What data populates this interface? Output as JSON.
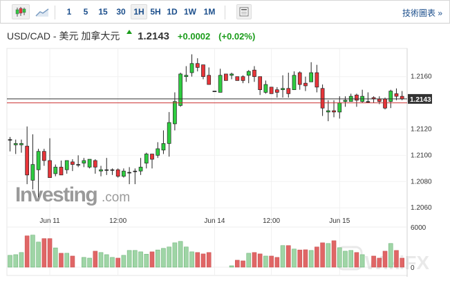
{
  "toolbar": {
    "intervals": [
      "1",
      "5",
      "15",
      "30",
      "1H",
      "5H",
      "1D",
      "1W",
      "1M"
    ],
    "active_interval": "1H",
    "tech_chart_link": "技術圖表 »"
  },
  "header": {
    "symbol_title": "USD/CAD - 美元 加拿大元",
    "price": "1.2143",
    "change": "+0.0002",
    "change_pct": "(+0.02%)"
  },
  "watermarks": {
    "investing": "Investing.com",
    "wikifx": "WikiFX"
  },
  "colors": {
    "up": "#2ecc40",
    "down": "#e8353a",
    "vol_up": "#9fd5a6",
    "vol_down": "#e06666",
    "price_line": "#333333",
    "prev_line": "#cc3333",
    "tag_bg": "#333333"
  },
  "chart_data": {
    "type": "candlestick",
    "title": "USD/CAD - 美元 加拿大元",
    "interval": "1H",
    "ylim": [
      1.2055,
      1.218
    ],
    "y_ticks": [
      "1.2160",
      "1.2120",
      "1.2100",
      "1.2080",
      "1.2060"
    ],
    "current_price_label": "1.2143",
    "current_price": 1.2143,
    "prev_close": 1.214,
    "x_ticks": [
      {
        "label": "Jun 11",
        "index": 7
      },
      {
        "label": "12:00",
        "index": 19
      },
      {
        "label": "Jun 14",
        "index": 36
      },
      {
        "label": "12:00",
        "index": 46
      },
      {
        "label": "Jun 15",
        "index": 58
      }
    ],
    "ohlc": [
      [
        1.2112,
        1.2114,
        1.2103,
        1.2112
      ],
      [
        1.2108,
        1.2112,
        1.2101,
        1.2109
      ],
      [
        1.2108,
        1.2112,
        1.2102,
        1.2109
      ],
      [
        1.2107,
        1.2122,
        1.2078,
        1.2085
      ],
      [
        1.2081,
        1.2116,
        1.2074,
        1.2093
      ],
      [
        1.2089,
        1.2105,
        1.2068,
        1.2103
      ],
      [
        1.2103,
        1.2105,
        1.2092,
        1.2096
      ],
      [
        1.2096,
        1.2113,
        1.2083,
        1.2083
      ],
      [
        1.2086,
        1.2093,
        1.2084,
        1.2091
      ],
      [
        1.2091,
        1.2096,
        1.2085,
        1.2085
      ],
      [
        1.2089,
        1.2096,
        1.2086,
        1.2096
      ],
      [
        1.2095,
        1.2097,
        1.2088,
        1.2093
      ],
      [
        1.2093,
        1.21,
        1.2091,
        1.2093
      ],
      [
        1.2094,
        1.2098,
        1.2091,
        1.2096
      ],
      [
        1.2091,
        1.2097,
        1.209,
        1.2097
      ],
      [
        1.2096,
        1.2097,
        1.2086,
        1.2091
      ],
      [
        1.2088,
        1.2092,
        1.2084,
        1.2089
      ],
      [
        1.2089,
        1.2098,
        1.2085,
        1.2089
      ],
      [
        1.2089,
        1.209,
        1.2085,
        1.2089
      ],
      [
        1.2089,
        1.209,
        1.2083,
        1.2084
      ],
      [
        1.2084,
        1.209,
        1.2083,
        1.2088
      ],
      [
        1.2087,
        1.2091,
        1.2078,
        1.2087
      ],
      [
        1.2088,
        1.209,
        1.2078,
        1.2088
      ],
      [
        1.2088,
        1.2098,
        1.2085,
        1.2091
      ],
      [
        1.2094,
        1.2102,
        1.209,
        1.2101
      ],
      [
        1.2101,
        1.2101,
        1.209,
        1.2097
      ],
      [
        1.21,
        1.211,
        1.2098,
        1.2105
      ],
      [
        1.2104,
        1.2119,
        1.2101,
        1.2109
      ],
      [
        1.2109,
        1.2133,
        1.2099,
        1.2125
      ],
      [
        1.2124,
        1.2148,
        1.2119,
        1.2141
      ],
      [
        1.2138,
        1.2163,
        1.2137,
        1.2162
      ],
      [
        1.216,
        1.2168,
        1.2156,
        1.2161
      ],
      [
        1.2163,
        1.2177,
        1.216,
        1.217
      ],
      [
        1.217,
        1.2174,
        1.2164,
        1.2167
      ],
      [
        1.2169,
        1.2169,
        1.2158,
        1.216
      ],
      [
        1.2161,
        1.2167,
        1.2154,
        1.2154
      ],
      [
        1.2149,
        1.2149,
        1.2149,
        1.2149
      ],
      [
        1.2148,
        1.2166,
        1.2148,
        1.2161
      ],
      [
        1.2162,
        1.2162,
        1.2157,
        1.2157
      ],
      [
        1.2161,
        1.2163,
        1.2158,
        1.2162
      ],
      [
        1.216,
        1.216,
        1.2157,
        1.2157
      ],
      [
        1.216,
        1.2161,
        1.2155,
        1.2157
      ],
      [
        1.2161,
        1.2165,
        1.2155,
        1.2164
      ],
      [
        1.2165,
        1.2168,
        1.2156,
        1.216
      ],
      [
        1.216,
        1.216,
        1.2146,
        1.215
      ],
      [
        1.2148,
        1.2157,
        1.2147,
        1.2154
      ],
      [
        1.2152,
        1.2152,
        1.2147,
        1.2147
      ],
      [
        1.215,
        1.2152,
        1.2144,
        1.2148
      ],
      [
        1.215,
        1.2161,
        1.2144,
        1.2151
      ],
      [
        1.2151,
        1.2163,
        1.2144,
        1.2147
      ],
      [
        1.215,
        1.2164,
        1.215,
        1.2161
      ],
      [
        1.2163,
        1.2164,
        1.215,
        1.2154
      ],
      [
        1.2155,
        1.216,
        1.2149,
        1.2153
      ],
      [
        1.2156,
        1.2171,
        1.2156,
        1.2163
      ],
      [
        1.2163,
        1.2169,
        1.2148,
        1.2152
      ],
      [
        1.2151,
        1.2154,
        1.213,
        1.2136
      ],
      [
        1.2133,
        1.2142,
        1.2126,
        1.2134
      ],
      [
        1.2134,
        1.2142,
        1.2129,
        1.2133
      ],
      [
        1.2133,
        1.2145,
        1.2128,
        1.214
      ],
      [
        1.2141,
        1.2145,
        1.2137,
        1.2142
      ],
      [
        1.2141,
        1.2147,
        1.2141,
        1.2145
      ],
      [
        1.2146,
        1.2147,
        1.2137,
        1.2142
      ],
      [
        1.2141,
        1.215,
        1.214,
        1.2145
      ],
      [
        1.2141,
        1.2148,
        1.214,
        1.2141
      ],
      [
        1.2144,
        1.2145,
        1.214,
        1.2143
      ],
      [
        1.2143,
        1.2145,
        1.2139,
        1.2141
      ],
      [
        1.2143,
        1.2144,
        1.2135,
        1.2136
      ],
      [
        1.2141,
        1.215,
        1.2136,
        1.2149
      ],
      [
        1.2147,
        1.2151,
        1.2142,
        1.2145
      ],
      [
        1.2145,
        1.2149,
        1.2142,
        1.2143
      ]
    ],
    "volume_ticks": [
      "6000",
      "0"
    ],
    "volume_max": 6000,
    "volume": [
      1770,
      1870,
      2190,
      4680,
      4790,
      3750,
      4270,
      4270,
      2880,
      2080,
      2080,
      1660,
      0,
      1460,
      1350,
      2390,
      2190,
      1870,
      1460,
      1350,
      1770,
      2500,
      2500,
      2290,
      1940,
      2290,
      2570,
      2810,
      3020,
      3640,
      3850,
      3020,
      2290,
      2190,
      1980,
      2190,
      0,
      0,
      0,
      210,
      1040,
      940,
      2080,
      2190,
      1980,
      1660,
      1660,
      1460,
      3230,
      3230,
      2710,
      2570,
      2600,
      2500,
      3020,
      3640,
      3540,
      3950,
      2910,
      2390,
      2500,
      2190,
      1870,
      0,
      1660,
      1350,
      2390,
      3540,
      2500,
      1350
    ]
  }
}
